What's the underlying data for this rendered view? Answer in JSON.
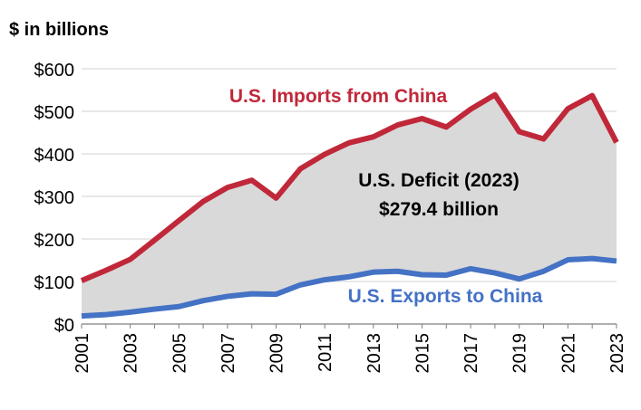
{
  "chart_data": {
    "type": "area",
    "unit_label": "$ in billions",
    "x": [
      2001,
      2002,
      2003,
      2004,
      2005,
      2006,
      2007,
      2008,
      2009,
      2010,
      2011,
      2012,
      2013,
      2014,
      2015,
      2016,
      2017,
      2018,
      2019,
      2020,
      2021,
      2022,
      2023
    ],
    "x_tick_labels": [
      "2001",
      "2003",
      "2005",
      "2007",
      "2009",
      "2011",
      "2013",
      "2015",
      "2017",
      "2019",
      "2021",
      "2023"
    ],
    "y_tick_labels": [
      "$0",
      "$100",
      "$200",
      "$300",
      "$400",
      "$500",
      "$600"
    ],
    "ylim": [
      0,
      600
    ],
    "grid": true,
    "series": [
      {
        "name": "U.S. Imports from China",
        "color": "#c0283a",
        "values": [
          102,
          126,
          152,
          197,
          243,
          288,
          321,
          338,
          296,
          365,
          399,
          426,
          440,
          468,
          483,
          463,
          505,
          539,
          452,
          435,
          506,
          537,
          427
        ]
      },
      {
        "name": "U.S. Exports to China",
        "color": "#4472c4",
        "values": [
          19,
          22,
          28,
          35,
          41,
          55,
          65,
          71,
          70,
          92,
          104,
          111,
          122,
          124,
          116,
          115,
          130,
          120,
          106,
          124,
          151,
          154,
          148
        ]
      }
    ],
    "area_fill": "#d9d9d9",
    "annotations": {
      "deficit_line1": "U.S. Deficit (2023)",
      "deficit_line2": "$279.4 billion"
    }
  }
}
